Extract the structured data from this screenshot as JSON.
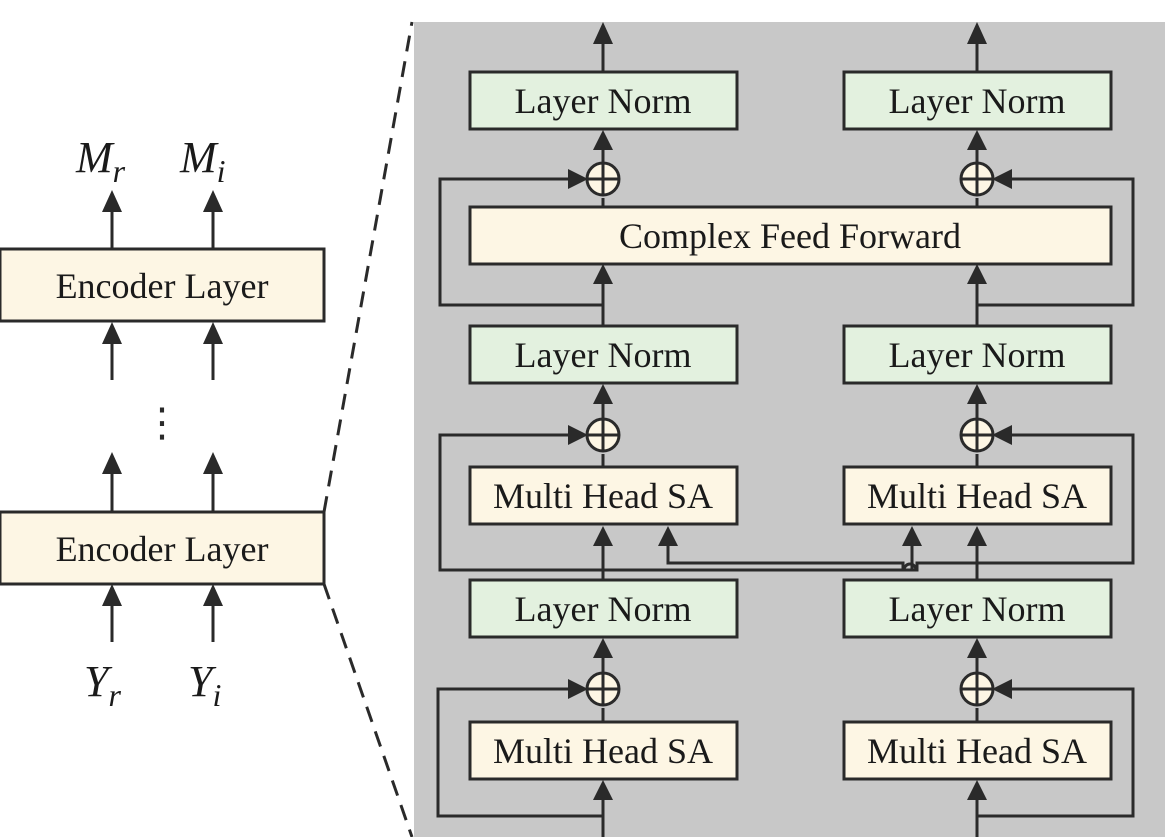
{
  "colors": {
    "panel_bg": "#c8c8c8",
    "norm_fill": "#e3f1df",
    "block_fill": "#fdf6e4",
    "stroke": "#2a2a2a"
  },
  "left": {
    "outputs": [
      {
        "main": "M",
        "sub": "r"
      },
      {
        "main": "M",
        "sub": "i"
      }
    ],
    "encoder_top_label": "Encoder Layer",
    "ellipsis": "⋮",
    "encoder_bottom_label": "Encoder Layer",
    "inputs": [
      {
        "main": "Y",
        "sub": "r"
      },
      {
        "main": "Y",
        "sub": "i"
      }
    ]
  },
  "right": {
    "top_norm_left": "Layer Norm",
    "top_norm_right": "Layer Norm",
    "feed_forward": "Complex Feed Forward",
    "mid_norm_left": "Layer Norm",
    "mid_norm_right": "Layer Norm",
    "mhsa_upper_left": "Multi Head SA",
    "mhsa_upper_right": "Multi Head SA",
    "low_norm_left": "Layer Norm",
    "low_norm_right": "Layer Norm",
    "mhsa_lower_left": "Multi Head SA",
    "mhsa_lower_right": "Multi Head SA",
    "adder_symbol": "⊕"
  }
}
